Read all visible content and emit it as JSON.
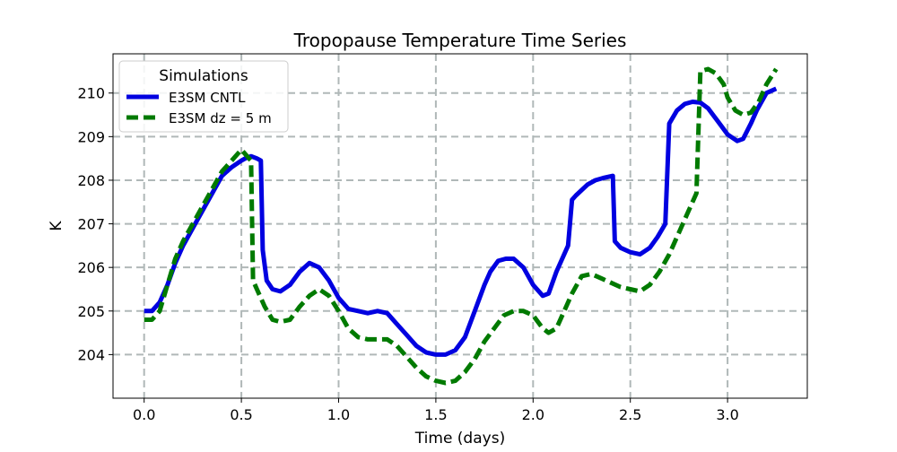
{
  "chart_data": {
    "type": "line",
    "title": "Tropopause Temperature Time Series",
    "xlabel": "Time (days)",
    "ylabel": "K",
    "xlim": [
      -0.16,
      3.41
    ],
    "ylim": [
      203.0,
      210.9
    ],
    "xticks": [
      0.0,
      0.5,
      1.0,
      1.5,
      2.0,
      2.5,
      3.0
    ],
    "xtick_labels": [
      "0.0",
      "0.5",
      "1.0",
      "1.5",
      "2.0",
      "2.5",
      "3.0"
    ],
    "yticks": [
      204,
      205,
      206,
      207,
      208,
      209,
      210
    ],
    "ytick_labels": [
      "204",
      "205",
      "206",
      "207",
      "208",
      "209",
      "210"
    ],
    "grid": true,
    "legend": {
      "title": "Simulations",
      "position": "top-left"
    },
    "series": [
      {
        "name": "E3SM CNTL",
        "color": "#0000e0",
        "style": "solid",
        "x": [
          0.0,
          0.04,
          0.08,
          0.12,
          0.16,
          0.2,
          0.25,
          0.3,
          0.35,
          0.4,
          0.45,
          0.5,
          0.52,
          0.55,
          0.58,
          0.6,
          0.61,
          0.63,
          0.66,
          0.7,
          0.75,
          0.8,
          0.85,
          0.9,
          0.95,
          1.0,
          1.05,
          1.1,
          1.15,
          1.2,
          1.25,
          1.3,
          1.35,
          1.4,
          1.45,
          1.5,
          1.55,
          1.6,
          1.65,
          1.7,
          1.75,
          1.78,
          1.82,
          1.86,
          1.9,
          1.95,
          2.0,
          2.05,
          2.08,
          2.12,
          2.18,
          2.2,
          2.22,
          2.28,
          2.32,
          2.36,
          2.41,
          2.42,
          2.45,
          2.5,
          2.55,
          2.6,
          2.64,
          2.68,
          2.7,
          2.74,
          2.78,
          2.82,
          2.86,
          2.9,
          2.95,
          3.0,
          3.05,
          3.08,
          3.12,
          3.15,
          3.2,
          3.25
        ],
        "y": [
          205.0,
          205.0,
          205.2,
          205.6,
          206.1,
          206.5,
          206.9,
          207.3,
          207.7,
          208.1,
          208.3,
          208.45,
          208.5,
          208.55,
          208.5,
          208.45,
          206.4,
          205.7,
          205.5,
          205.45,
          205.6,
          205.9,
          206.1,
          206.0,
          205.7,
          205.3,
          205.05,
          205.0,
          204.95,
          205.0,
          204.95,
          204.7,
          204.45,
          204.2,
          204.05,
          204.0,
          204.0,
          204.1,
          204.4,
          205.0,
          205.6,
          205.9,
          206.15,
          206.2,
          206.2,
          206.0,
          205.6,
          205.35,
          205.4,
          205.9,
          206.5,
          207.55,
          207.65,
          207.9,
          208.0,
          208.05,
          208.1,
          206.6,
          206.45,
          206.35,
          206.3,
          206.45,
          206.7,
          207.0,
          209.3,
          209.6,
          209.75,
          209.8,
          209.78,
          209.65,
          209.35,
          209.05,
          208.9,
          208.95,
          209.3,
          209.6,
          210.0,
          210.1
        ]
      },
      {
        "name": "E3SM dz = 5 m",
        "color": "#007a00",
        "style": "dashed",
        "x": [
          0.0,
          0.04,
          0.08,
          0.12,
          0.16,
          0.2,
          0.25,
          0.3,
          0.35,
          0.4,
          0.45,
          0.5,
          0.52,
          0.55,
          0.56,
          0.58,
          0.62,
          0.66,
          0.7,
          0.75,
          0.8,
          0.85,
          0.9,
          0.95,
          1.0,
          1.05,
          1.1,
          1.15,
          1.2,
          1.25,
          1.3,
          1.35,
          1.4,
          1.45,
          1.5,
          1.55,
          1.6,
          1.65,
          1.7,
          1.75,
          1.8,
          1.85,
          1.9,
          1.95,
          2.0,
          2.05,
          2.08,
          2.12,
          2.16,
          2.2,
          2.25,
          2.3,
          2.35,
          2.4,
          2.45,
          2.5,
          2.55,
          2.6,
          2.65,
          2.7,
          2.75,
          2.8,
          2.84,
          2.86,
          2.9,
          2.94,
          2.98,
          3.0,
          3.04,
          3.08,
          3.12,
          3.16,
          3.2,
          3.25
        ],
        "y": [
          204.8,
          204.8,
          205.0,
          205.6,
          206.2,
          206.6,
          207.0,
          207.4,
          207.8,
          208.2,
          208.45,
          208.7,
          208.6,
          208.45,
          205.7,
          205.5,
          205.1,
          204.8,
          204.75,
          204.8,
          205.1,
          205.35,
          205.5,
          205.35,
          205.0,
          204.6,
          204.4,
          204.35,
          204.35,
          204.35,
          204.2,
          203.95,
          203.7,
          203.5,
          203.4,
          203.35,
          203.4,
          203.6,
          203.9,
          204.3,
          204.6,
          204.9,
          205.0,
          205.0,
          204.9,
          204.6,
          204.5,
          204.6,
          205.0,
          205.4,
          205.8,
          205.85,
          205.75,
          205.65,
          205.55,
          205.5,
          205.45,
          205.6,
          205.9,
          206.3,
          206.8,
          207.3,
          207.7,
          210.5,
          210.55,
          210.45,
          210.2,
          209.9,
          209.6,
          209.5,
          209.55,
          209.8,
          210.2,
          210.55
        ]
      }
    ]
  }
}
